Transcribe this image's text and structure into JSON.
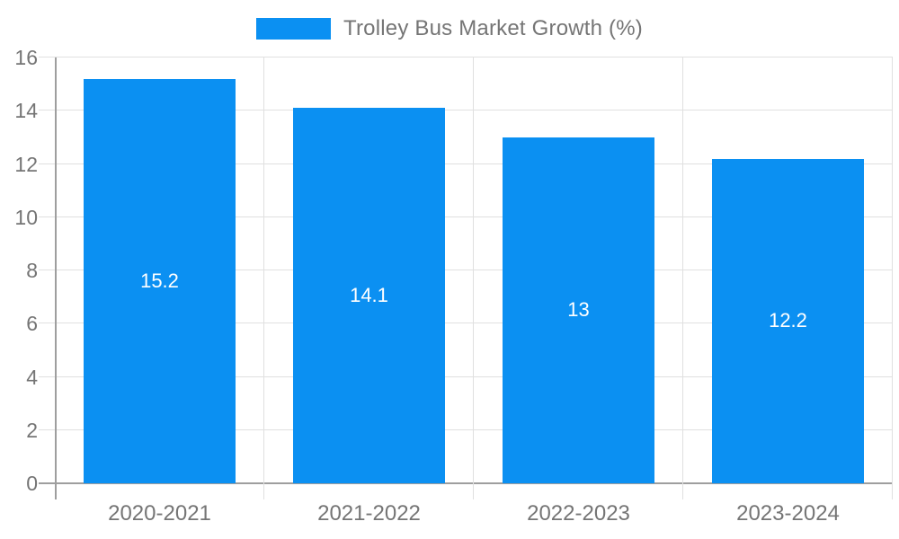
{
  "chart_data": {
    "type": "bar",
    "title": "Trolley Bus Market Growth (%)",
    "categories": [
      "2020-2021",
      "2021-2022",
      "2022-2023",
      "2023-2024"
    ],
    "values": [
      15.2,
      14.1,
      13,
      12.2
    ],
    "value_labels": [
      "15.2",
      "14.1",
      "13",
      "12.2"
    ],
    "xlabel": "",
    "ylabel": "",
    "ylim": [
      0,
      16
    ],
    "yticks": [
      0,
      2,
      4,
      6,
      8,
      10,
      12,
      14,
      16
    ],
    "grid": true,
    "legend_position": "top",
    "bar_color": "#0b90f2",
    "value_label_color": "#ffffff",
    "axis_color": "#9e9e9e",
    "grid_color": "#e0e0e0",
    "text_color": "#757575"
  }
}
